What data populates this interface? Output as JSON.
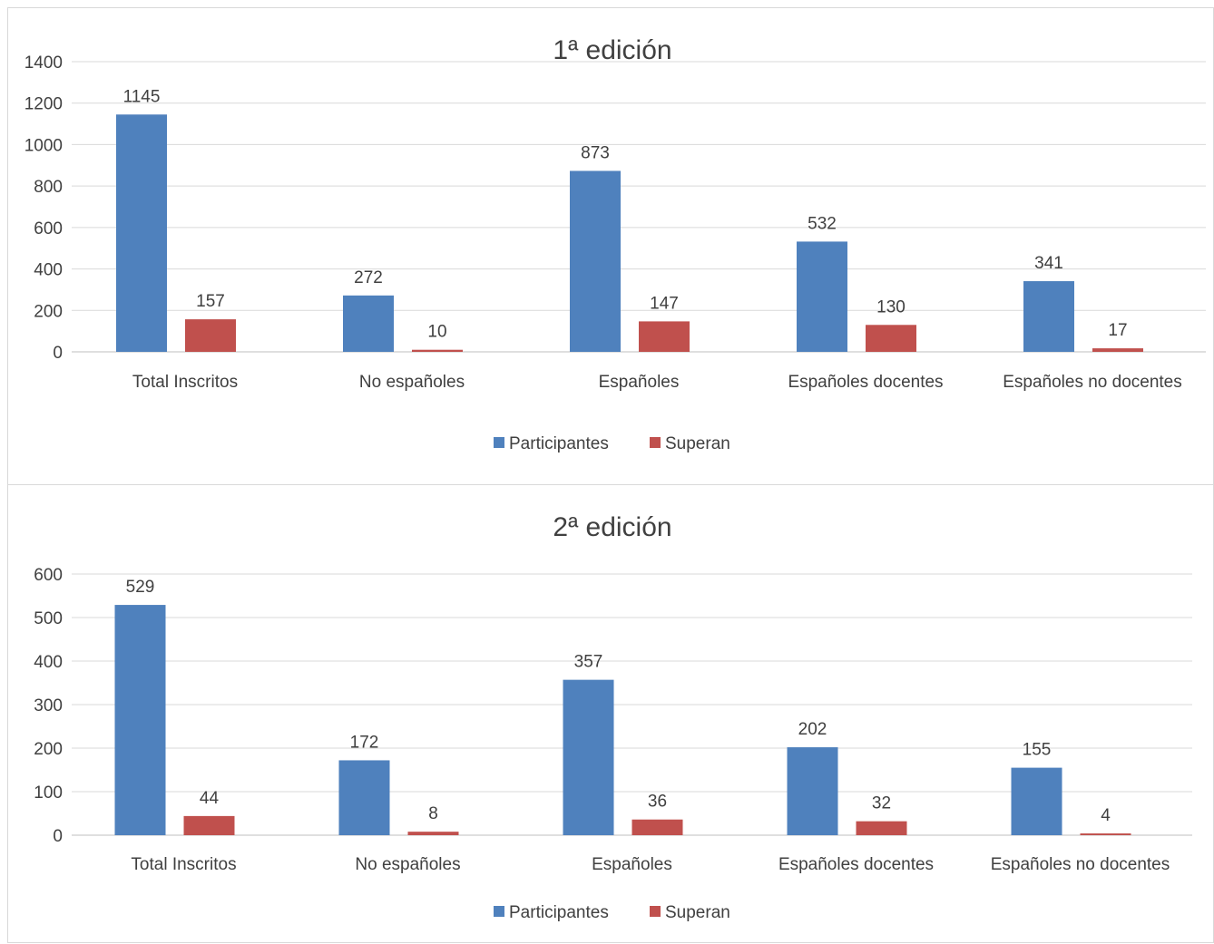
{
  "chart_data": [
    {
      "type": "bar",
      "title": "1ª edición",
      "categories": [
        "Total Inscritos",
        "No españoles",
        "Españoles",
        "Españoles docentes",
        "Españoles no docentes"
      ],
      "series": [
        {
          "name": "Participantes",
          "color": "#4f81bd",
          "values": [
            1145,
            272,
            873,
            532,
            341
          ]
        },
        {
          "name": "Superan",
          "color": "#c0504d",
          "values": [
            157,
            10,
            147,
            130,
            17
          ]
        }
      ],
      "ylim": [
        0,
        1400
      ],
      "yticks": [
        "0",
        "200",
        "400",
        "600",
        "800",
        "1000",
        "1200",
        "1400"
      ],
      "grid": true,
      "legend": "bottom"
    },
    {
      "type": "bar",
      "title": "2ª edición",
      "categories": [
        "Total Inscritos",
        "No españoles",
        "Españoles",
        "Españoles docentes",
        "Españoles no docentes"
      ],
      "series": [
        {
          "name": "Participantes",
          "color": "#4f81bd",
          "values": [
            529,
            172,
            357,
            202,
            155
          ]
        },
        {
          "name": "Superan",
          "color": "#c0504d",
          "values": [
            44,
            8,
            36,
            32,
            4
          ]
        }
      ],
      "ylim": [
        0,
        600
      ],
      "yticks": [
        "0",
        "100",
        "200",
        "300",
        "400",
        "500",
        "600"
      ],
      "grid": true,
      "legend": "bottom"
    }
  ]
}
